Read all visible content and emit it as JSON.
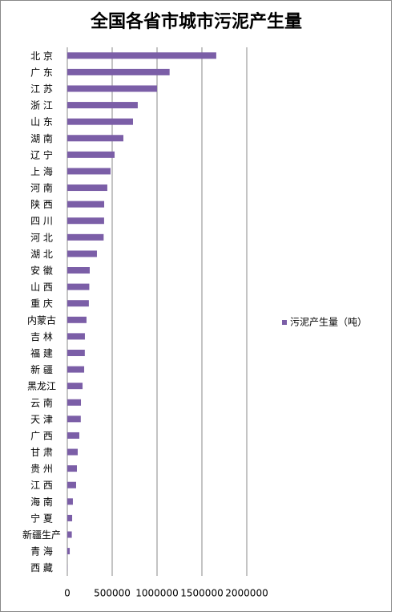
{
  "chart_data": {
    "type": "bar",
    "orientation": "horizontal",
    "title": "全国各省市城市污泥产生量",
    "categories": [
      "北 京",
      "广 东",
      "江 苏",
      "浙 江",
      "山 东",
      "湖 南",
      "辽 宁",
      "上 海",
      "河 南",
      "陕 西",
      "四 川",
      "河 北",
      "湖 北",
      "安 徽",
      "山 西",
      "重 庆",
      "内蒙古",
      "吉 林",
      "福 建",
      "新 疆",
      "黑龙江",
      "云 南",
      "天 津",
      "广 西",
      "甘 肃",
      "贵 州",
      "江 西",
      "海 南",
      "宁 夏",
      "新疆生产",
      "青 海",
      "西 藏"
    ],
    "series": [
      {
        "name": "污泥产生量（吨）",
        "color": "#7b5ea7",
        "values": [
          1660000,
          1140000,
          1000000,
          785000,
          732000,
          625000,
          527000,
          482000,
          446000,
          411000,
          410000,
          405000,
          330000,
          250000,
          245000,
          240000,
          214000,
          196000,
          195000,
          188000,
          170000,
          152000,
          150000,
          134000,
          116000,
          107000,
          98000,
          62000,
          54000,
          50000,
          27000,
          2000
        ]
      }
    ],
    "xlim": [
      0,
      2000000
    ],
    "xticks": [
      0,
      500000,
      1000000,
      1500000,
      2000000
    ],
    "grid": true,
    "legend": "right"
  }
}
